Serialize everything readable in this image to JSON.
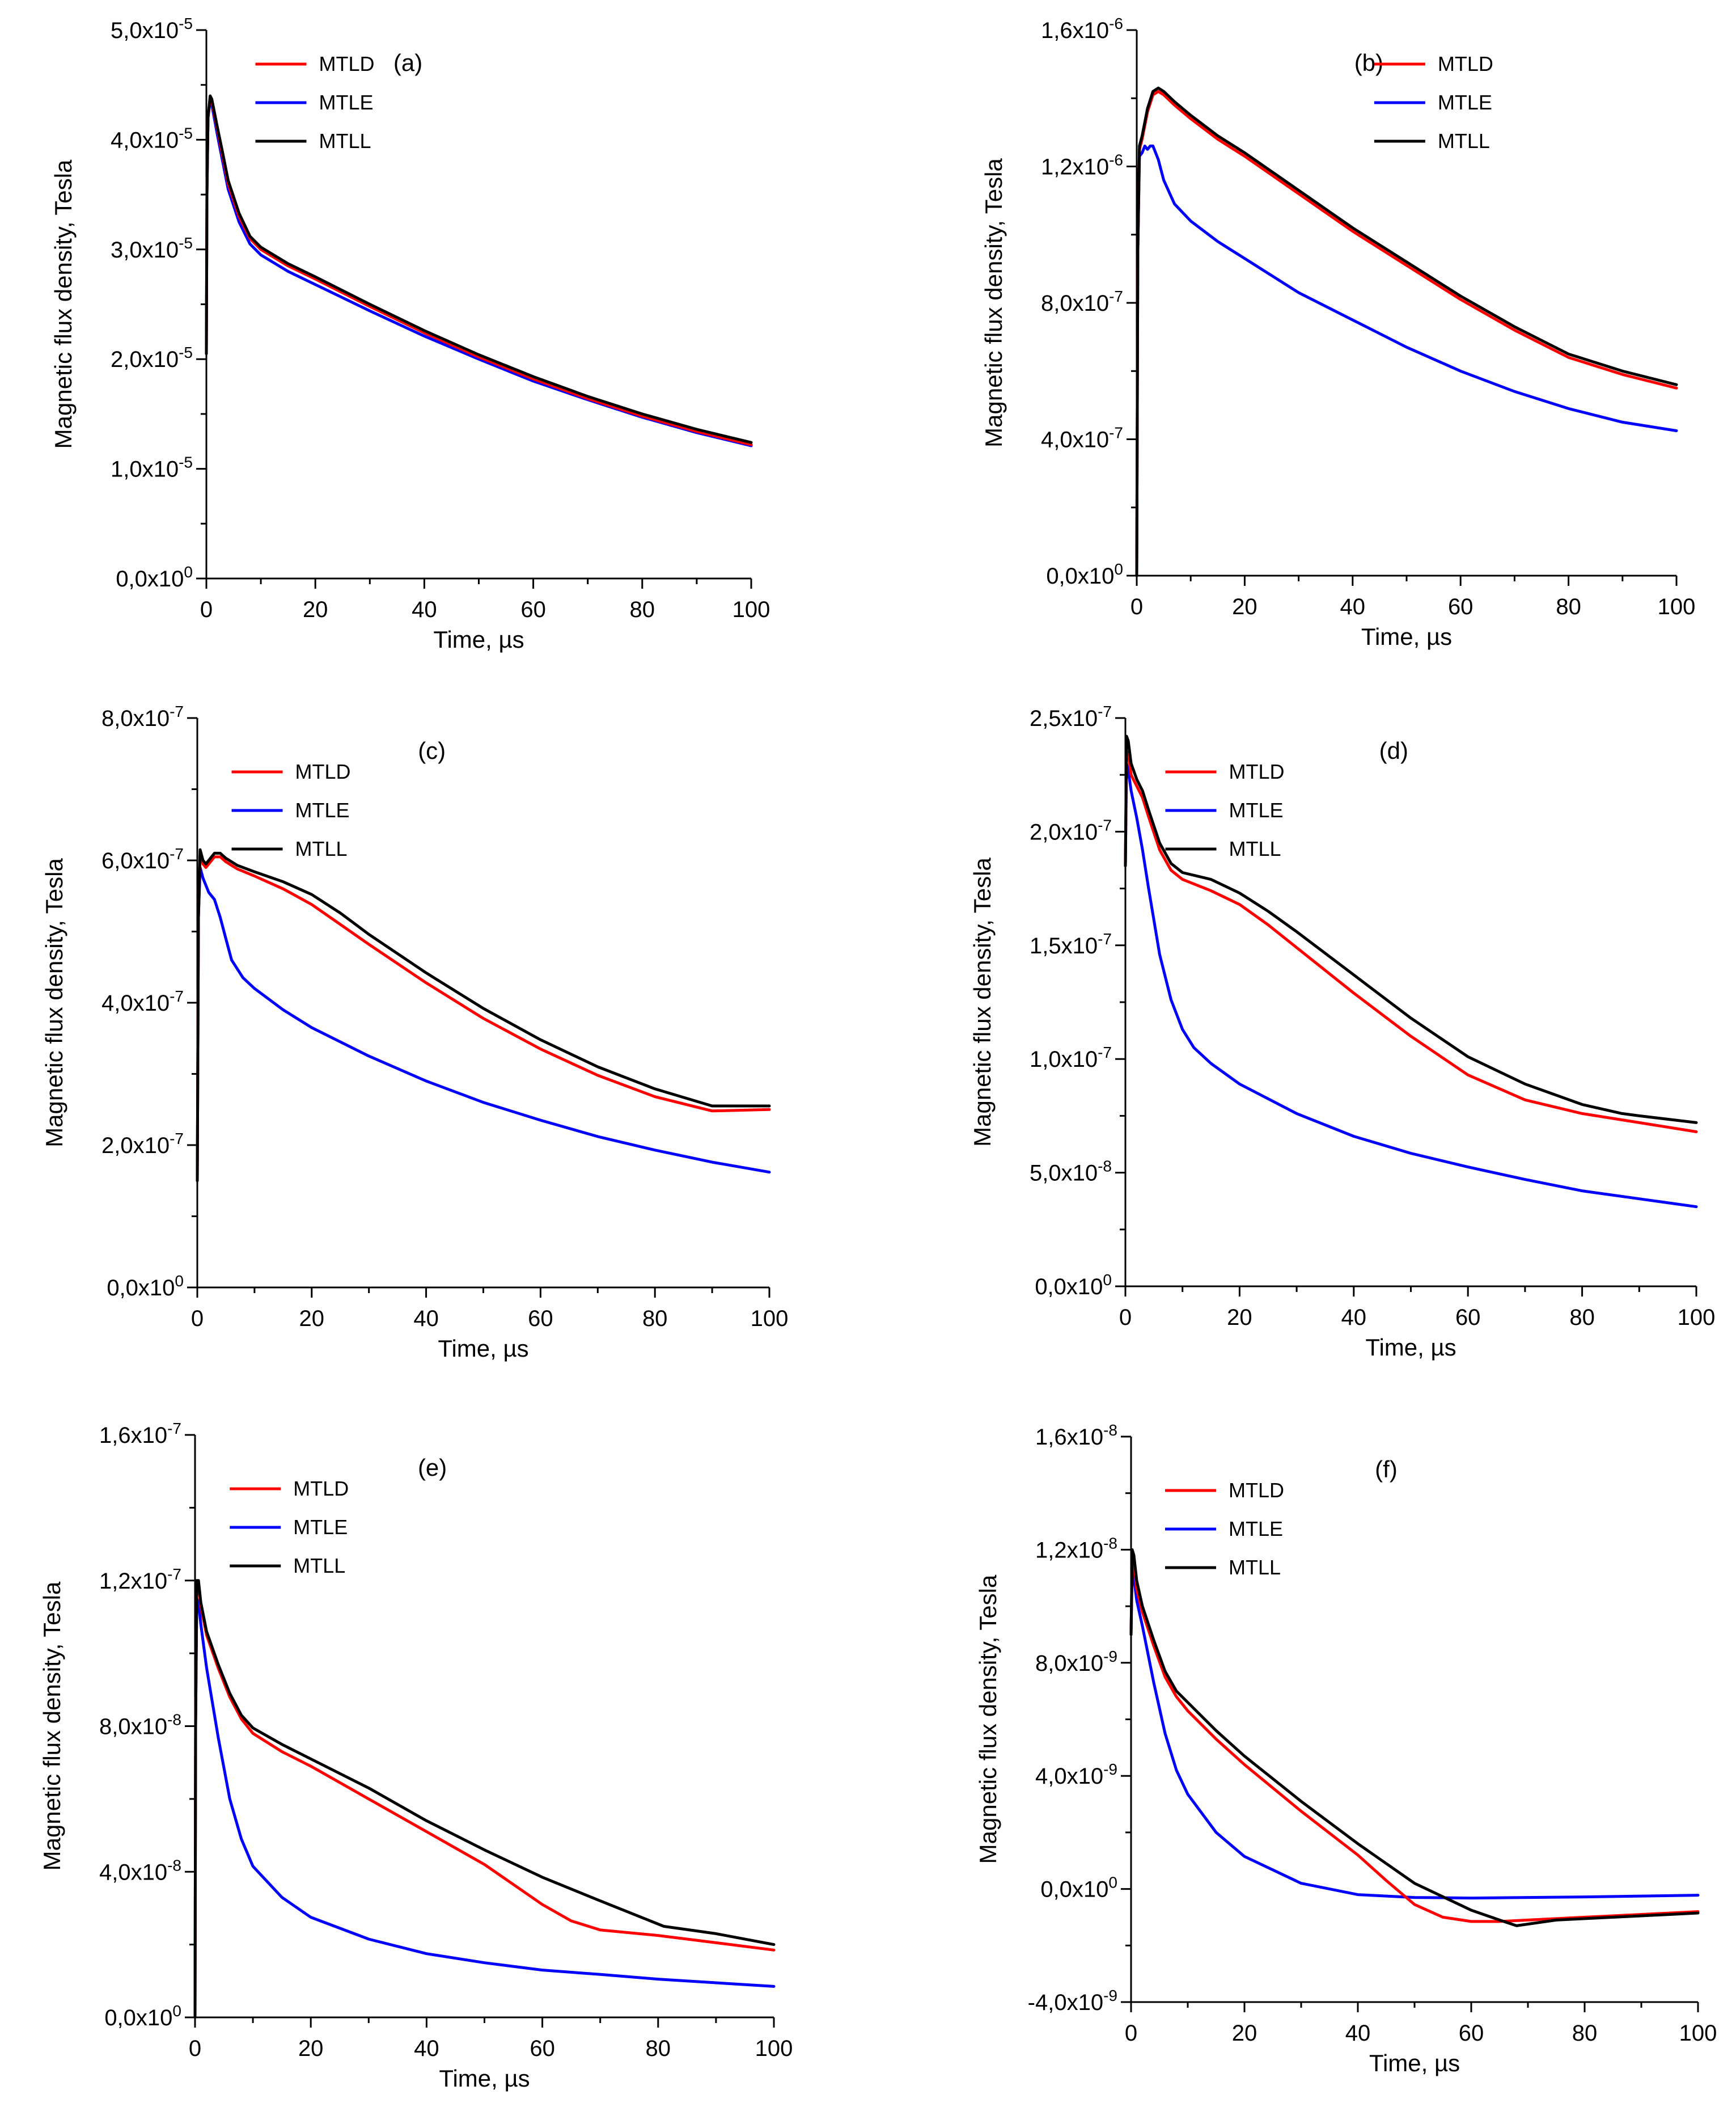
{
  "figure": {
    "colors": {
      "MTLD": "#ff0000",
      "MTLE": "#0000ff",
      "MTLL": "#000000"
    }
  },
  "chart_data": [
    {
      "type": "line",
      "panel": "(a)",
      "xlabel": "Time, µs",
      "ylabel": "Magnetic flux density, Tesla",
      "xlim": [
        0,
        100
      ],
      "ylim": [
        0,
        5e-05
      ],
      "x_ticks": [
        0,
        20,
        40,
        60,
        80,
        100
      ],
      "y_ticks": [
        {
          "mantissa": "0,0",
          "exp": "0"
        },
        {
          "mantissa": "1,0",
          "exp": "-5"
        },
        {
          "mantissa": "2,0",
          "exp": "-5"
        },
        {
          "mantissa": "3,0",
          "exp": "-5"
        },
        {
          "mantissa": "4,0",
          "exp": "-5"
        },
        {
          "mantissa": "5,0",
          "exp": "-5"
        }
      ],
      "y_scale_exp": -5,
      "legend": [
        "MTLD",
        "MTLE",
        "MTLL"
      ],
      "series": [
        {
          "name": "MTLD",
          "x": [
            0,
            0.1,
            0.3,
            0.7,
            1,
            2,
            3,
            4,
            6,
            8,
            10,
            15,
            20,
            30,
            40,
            50,
            60,
            70,
            80,
            90,
            100
          ],
          "y": [
            2.05,
            3.5,
            4.2,
            4.38,
            4.35,
            4.1,
            3.85,
            3.6,
            3.3,
            3.1,
            3.0,
            2.85,
            2.73,
            2.48,
            2.24,
            2.02,
            1.82,
            1.64,
            1.48,
            1.34,
            1.22
          ]
        },
        {
          "name": "MTLE",
          "x": [
            0,
            0.1,
            0.3,
            0.7,
            1,
            2,
            3,
            4,
            6,
            8,
            10,
            15,
            20,
            30,
            40,
            50,
            60,
            70,
            80,
            90,
            100
          ],
          "y": [
            2.05,
            3.5,
            4.2,
            4.36,
            4.32,
            4.05,
            3.8,
            3.55,
            3.25,
            3.05,
            2.95,
            2.8,
            2.68,
            2.44,
            2.21,
            2.0,
            1.8,
            1.63,
            1.47,
            1.33,
            1.21
          ]
        },
        {
          "name": "MTLL",
          "x": [
            0,
            0.1,
            0.3,
            0.7,
            1,
            2,
            3,
            4,
            6,
            8,
            10,
            15,
            20,
            30,
            40,
            50,
            60,
            70,
            80,
            90,
            100
          ],
          "y": [
            2.05,
            3.5,
            4.2,
            4.4,
            4.37,
            4.12,
            3.88,
            3.63,
            3.33,
            3.12,
            3.02,
            2.87,
            2.75,
            2.5,
            2.26,
            2.04,
            1.84,
            1.66,
            1.5,
            1.36,
            1.24
          ]
        }
      ]
    },
    {
      "type": "line",
      "panel": "(b)",
      "xlabel": "Time, µs",
      "ylabel": "Magnetic flux density, Tesla",
      "xlim": [
        0,
        100
      ],
      "ylim": [
        0,
        1.6e-06
      ],
      "x_ticks": [
        0,
        20,
        40,
        60,
        80,
        100
      ],
      "y_ticks": [
        {
          "mantissa": "0,0",
          "exp": "0"
        },
        {
          "mantissa": "4,0",
          "exp": "-7"
        },
        {
          "mantissa": "8,0",
          "exp": "-7"
        },
        {
          "mantissa": "1,2",
          "exp": "-6"
        },
        {
          "mantissa": "1,6",
          "exp": "-6"
        }
      ],
      "y_scale_exp": -7,
      "legend": [
        "MTLD",
        "MTLE",
        "MTLL"
      ],
      "series": [
        {
          "name": "MTLD",
          "x": [
            0,
            0.2,
            0.5,
            1,
            2,
            3,
            4,
            5,
            7,
            10,
            15,
            20,
            30,
            40,
            50,
            60,
            70,
            80,
            90,
            100
          ],
          "y": [
            0,
            9.5,
            12.5,
            12.8,
            13.6,
            14.1,
            14.2,
            14.1,
            13.8,
            13.4,
            12.8,
            12.3,
            11.2,
            10.1,
            9.1,
            8.1,
            7.2,
            6.4,
            5.9,
            5.5
          ]
        },
        {
          "name": "MTLE",
          "x": [
            0,
            0.2,
            0.5,
            1,
            1.5,
            2,
            2.5,
            3,
            4,
            5,
            7,
            10,
            15,
            20,
            30,
            40,
            50,
            60,
            70,
            80,
            90,
            100
          ],
          "y": [
            0,
            9.5,
            12.3,
            12.4,
            12.6,
            12.5,
            12.6,
            12.6,
            12.2,
            11.6,
            10.9,
            10.4,
            9.8,
            9.3,
            8.3,
            7.5,
            6.7,
            6.0,
            5.4,
            4.9,
            4.5,
            4.25
          ]
        },
        {
          "name": "MTLL",
          "x": [
            0,
            0.2,
            0.5,
            1,
            2,
            3,
            4,
            5,
            7,
            10,
            15,
            20,
            30,
            40,
            50,
            60,
            70,
            80,
            90,
            100
          ],
          "y": [
            0,
            9.5,
            12.6,
            12.9,
            13.7,
            14.2,
            14.3,
            14.2,
            13.9,
            13.5,
            12.9,
            12.4,
            11.3,
            10.2,
            9.2,
            8.2,
            7.3,
            6.5,
            6.0,
            5.6
          ]
        }
      ]
    },
    {
      "type": "line",
      "panel": "(c)",
      "xlabel": "Time, µs",
      "ylabel": "Magnetic flux density, Tesla",
      "xlim": [
        0,
        100
      ],
      "ylim": [
        0,
        8e-07
      ],
      "x_ticks": [
        0,
        20,
        40,
        60,
        80,
        100
      ],
      "y_ticks": [
        {
          "mantissa": "0,0",
          "exp": "0"
        },
        {
          "mantissa": "2,0",
          "exp": "-7"
        },
        {
          "mantissa": "4,0",
          "exp": "-7"
        },
        {
          "mantissa": "6,0",
          "exp": "-7"
        },
        {
          "mantissa": "8,0",
          "exp": "-7"
        }
      ],
      "y_scale_exp": -7,
      "legend": [
        "MTLD",
        "MTLE",
        "MTLL"
      ],
      "series": [
        {
          "name": "MTLD",
          "x": [
            0,
            0.2,
            0.5,
            1,
            1.5,
            2,
            3,
            4,
            5,
            7,
            10,
            15,
            20,
            25,
            30,
            40,
            50,
            60,
            70,
            80,
            90,
            100
          ],
          "y": [
            1.5,
            5.2,
            6.1,
            5.95,
            5.9,
            5.95,
            6.05,
            6.05,
            5.98,
            5.88,
            5.78,
            5.6,
            5.38,
            5.1,
            4.82,
            4.28,
            3.78,
            3.35,
            2.98,
            2.68,
            2.48,
            2.5
          ]
        },
        {
          "name": "MTLE",
          "x": [
            0,
            0.2,
            0.5,
            1,
            2,
            3,
            4,
            5,
            6,
            8,
            10,
            15,
            20,
            30,
            40,
            50,
            60,
            70,
            80,
            90,
            100
          ],
          "y": [
            1.5,
            5.2,
            5.9,
            5.75,
            5.55,
            5.45,
            5.2,
            4.9,
            4.6,
            4.35,
            4.2,
            3.9,
            3.65,
            3.25,
            2.9,
            2.6,
            2.35,
            2.12,
            1.93,
            1.76,
            1.62
          ]
        },
        {
          "name": "MTLL",
          "x": [
            0,
            0.2,
            0.5,
            1,
            1.5,
            2,
            3,
            4,
            5,
            7,
            10,
            15,
            20,
            25,
            30,
            40,
            50,
            60,
            70,
            80,
            90,
            100
          ],
          "y": [
            1.5,
            5.2,
            6.15,
            6.0,
            5.95,
            6.0,
            6.1,
            6.1,
            6.03,
            5.93,
            5.84,
            5.7,
            5.52,
            5.26,
            4.96,
            4.42,
            3.92,
            3.48,
            3.1,
            2.79,
            2.55,
            2.55
          ]
        }
      ]
    },
    {
      "type": "line",
      "panel": "(d)",
      "xlabel": "Time, µs",
      "ylabel": "Magnetic flux density, Tesla",
      "xlim": [
        0,
        100
      ],
      "ylim": [
        0,
        2.5e-07
      ],
      "x_ticks": [
        0,
        20,
        40,
        60,
        80,
        100
      ],
      "y_ticks": [
        {
          "mantissa": "0,0",
          "exp": "0"
        },
        {
          "mantissa": "5,0",
          "exp": "-8"
        },
        {
          "mantissa": "1,0",
          "exp": "-7"
        },
        {
          "mantissa": "1,5",
          "exp": "-7"
        },
        {
          "mantissa": "2,0",
          "exp": "-7"
        },
        {
          "mantissa": "2,5",
          "exp": "-7"
        }
      ],
      "y_scale_exp": -8,
      "legend": [
        "MTLD",
        "MTLE",
        "MTLL"
      ],
      "series": [
        {
          "name": "MTLD",
          "x": [
            0,
            0.2,
            0.5,
            1,
            2,
            3,
            4,
            6,
            8,
            10,
            15,
            20,
            25,
            30,
            40,
            50,
            60,
            70,
            80,
            90,
            100
          ],
          "y": [
            18.5,
            23.5,
            23.5,
            22.5,
            22.0,
            21.5,
            20.7,
            19.2,
            18.3,
            17.9,
            17.4,
            16.8,
            15.9,
            14.9,
            12.9,
            11.0,
            9.3,
            8.2,
            7.6,
            7.2,
            6.8
          ]
        },
        {
          "name": "MTLE",
          "x": [
            0,
            0.2,
            0.5,
            1,
            2,
            3,
            4,
            6,
            8,
            10,
            12,
            15,
            20,
            30,
            40,
            50,
            60,
            70,
            80,
            90,
            100
          ],
          "y": [
            18.5,
            23.0,
            22.7,
            21.8,
            20.6,
            19.2,
            17.6,
            14.6,
            12.6,
            11.3,
            10.5,
            9.8,
            8.9,
            7.6,
            6.6,
            5.85,
            5.25,
            4.7,
            4.2,
            3.85,
            3.5
          ]
        },
        {
          "name": "MTLL",
          "x": [
            0,
            0.2,
            0.5,
            1,
            2,
            3,
            4,
            6,
            8,
            10,
            15,
            20,
            25,
            30,
            40,
            50,
            60,
            70,
            80,
            87,
            90,
            100
          ],
          "y": [
            18.5,
            24.2,
            24.0,
            23.0,
            22.3,
            21.8,
            21.0,
            19.5,
            18.6,
            18.2,
            17.9,
            17.3,
            16.5,
            15.6,
            13.7,
            11.8,
            10.1,
            8.9,
            8.0,
            7.6,
            7.5,
            7.2
          ]
        }
      ]
    },
    {
      "type": "line",
      "panel": "(e)",
      "xlabel": "Time, µs",
      "ylabel": "Magnetic flux density, Tesla",
      "xlim": [
        0,
        100
      ],
      "ylim": [
        0,
        1.6e-07
      ],
      "x_ticks": [
        0,
        20,
        40,
        60,
        80,
        100
      ],
      "y_ticks": [
        {
          "mantissa": "0,0",
          "exp": "0"
        },
        {
          "mantissa": "4,0",
          "exp": "-8"
        },
        {
          "mantissa": "8,0",
          "exp": "-8"
        },
        {
          "mantissa": "1,2",
          "exp": "-7"
        },
        {
          "mantissa": "1,6",
          "exp": "-7"
        }
      ],
      "y_scale_exp": -8,
      "legend": [
        "MTLD",
        "MTLE",
        "MTLL"
      ],
      "series": [
        {
          "name": "MTLD",
          "x": [
            0,
            0.1,
            0.3,
            0.6,
            1,
            2,
            4,
            6,
            8,
            10,
            15,
            20,
            30,
            40,
            50,
            60,
            65,
            70,
            80,
            90,
            100
          ],
          "y": [
            0,
            8.0,
            11.8,
            11.9,
            11.3,
            10.5,
            9.6,
            8.8,
            8.2,
            7.8,
            7.3,
            6.9,
            6.0,
            5.1,
            4.2,
            3.1,
            2.65,
            2.4,
            2.25,
            2.05,
            1.85
          ]
        },
        {
          "name": "MTLE",
          "x": [
            0,
            0.1,
            0.3,
            0.6,
            1,
            2,
            4,
            6,
            8,
            10,
            15,
            20,
            30,
            40,
            50,
            60,
            70,
            80,
            90,
            100
          ],
          "y": [
            0,
            8.0,
            11.5,
            11.4,
            10.8,
            9.6,
            7.7,
            6.0,
            4.9,
            4.15,
            3.3,
            2.75,
            2.15,
            1.75,
            1.5,
            1.3,
            1.18,
            1.05,
            0.95,
            0.85
          ]
        },
        {
          "name": "MTLL",
          "x": [
            0,
            0.1,
            0.3,
            0.6,
            1,
            2,
            4,
            6,
            8,
            10,
            15,
            20,
            30,
            40,
            50,
            60,
            70,
            81,
            90,
            100
          ],
          "y": [
            0,
            8.0,
            12.0,
            12.0,
            11.4,
            10.6,
            9.7,
            8.9,
            8.3,
            7.95,
            7.5,
            7.1,
            6.3,
            5.4,
            4.6,
            3.85,
            3.2,
            2.5,
            2.3,
            2.0
          ]
        }
      ]
    },
    {
      "type": "line",
      "panel": "(f)",
      "xlabel": "Time, µs",
      "ylabel": "Magnetic flux density, Tesla",
      "xlim": [
        0,
        100
      ],
      "ylim": [
        -4e-09,
        1.6e-08
      ],
      "x_ticks": [
        0,
        20,
        40,
        60,
        80,
        100
      ],
      "y_ticks": [
        {
          "mantissa": "-4,0",
          "exp": "-9"
        },
        {
          "mantissa": "0,0",
          "exp": "0"
        },
        {
          "mantissa": "4,0",
          "exp": "-9"
        },
        {
          "mantissa": "8,0",
          "exp": "-9"
        },
        {
          "mantissa": "1,2",
          "exp": "-8"
        },
        {
          "mantissa": "1,6",
          "exp": "-8"
        }
      ],
      "y_scale_exp": -9,
      "legend": [
        "MTLD",
        "MTLE",
        "MTLL"
      ],
      "series": [
        {
          "name": "MTLD",
          "x": [
            0,
            0.2,
            0.5,
            1,
            2,
            4,
            6,
            8,
            10,
            15,
            20,
            30,
            40,
            45,
            50,
            55,
            60,
            65,
            70,
            80,
            90,
            100
          ],
          "y": [
            9.0,
            11.8,
            11.6,
            10.6,
            9.8,
            8.6,
            7.5,
            6.8,
            6.3,
            5.3,
            4.4,
            2.75,
            1.2,
            0.3,
            -0.55,
            -1.0,
            -1.15,
            -1.15,
            -1.1,
            -1.0,
            -0.9,
            -0.8
          ]
        },
        {
          "name": "MTLE",
          "x": [
            0,
            0.2,
            0.5,
            1,
            2,
            4,
            6,
            8,
            10,
            15,
            20,
            30,
            40,
            50,
            60,
            70,
            80,
            90,
            100
          ],
          "y": [
            9.0,
            11.4,
            11.0,
            10.2,
            9.3,
            7.3,
            5.5,
            4.2,
            3.35,
            2.0,
            1.15,
            0.2,
            -0.2,
            -0.3,
            -0.32,
            -0.3,
            -0.28,
            -0.25,
            -0.22
          ]
        },
        {
          "name": "MTLL",
          "x": [
            0,
            0.2,
            0.5,
            1,
            2,
            4,
            6,
            8,
            10,
            15,
            20,
            30,
            40,
            50,
            60,
            65,
            68,
            75,
            80,
            90,
            100
          ],
          "y": [
            9.0,
            12.0,
            11.8,
            10.9,
            10.0,
            8.8,
            7.7,
            7.0,
            6.6,
            5.6,
            4.7,
            3.1,
            1.6,
            0.2,
            -0.75,
            -1.1,
            -1.3,
            -1.1,
            -1.05,
            -0.95,
            -0.85
          ]
        }
      ]
    }
  ]
}
